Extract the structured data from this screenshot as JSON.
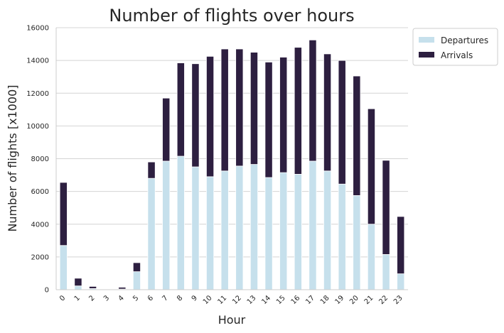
{
  "chart_data": {
    "type": "bar",
    "stacked": true,
    "title": "Number of flights over hours",
    "xlabel": "Hour",
    "ylabel": "Number of flights [x1000]",
    "categories": [
      "0",
      "1",
      "2",
      "3",
      "4",
      "5",
      "6",
      "7",
      "8",
      "9",
      "10",
      "11",
      "12",
      "13",
      "14",
      "15",
      "16",
      "17",
      "18",
      "19",
      "20",
      "21",
      "22",
      "23"
    ],
    "series": [
      {
        "name": "Departures",
        "color": "#c6e0ec",
        "values": [
          2700,
          230,
          70,
          30,
          40,
          1100,
          6800,
          7850,
          8150,
          7500,
          6900,
          7250,
          7550,
          7650,
          6850,
          7150,
          7050,
          7850,
          7250,
          6450,
          5750,
          4000,
          2150,
          970
        ]
      },
      {
        "name": "Arrivals",
        "color": "#2d1f40",
        "values": [
          3850,
          470,
          130,
          0,
          110,
          550,
          1000,
          3850,
          5700,
          6300,
          7350,
          7450,
          7150,
          6850,
          7050,
          7050,
          7750,
          7400,
          7150,
          7550,
          7300,
          7050,
          5750,
          3500
        ]
      }
    ],
    "ylim": [
      0,
      16000
    ],
    "yticks": [
      "0",
      "2000",
      "4000",
      "6000",
      "8000",
      "10000",
      "12000",
      "14000",
      "16000"
    ],
    "grid": "horizontal",
    "legend_position": "upper-right-outside"
  }
}
